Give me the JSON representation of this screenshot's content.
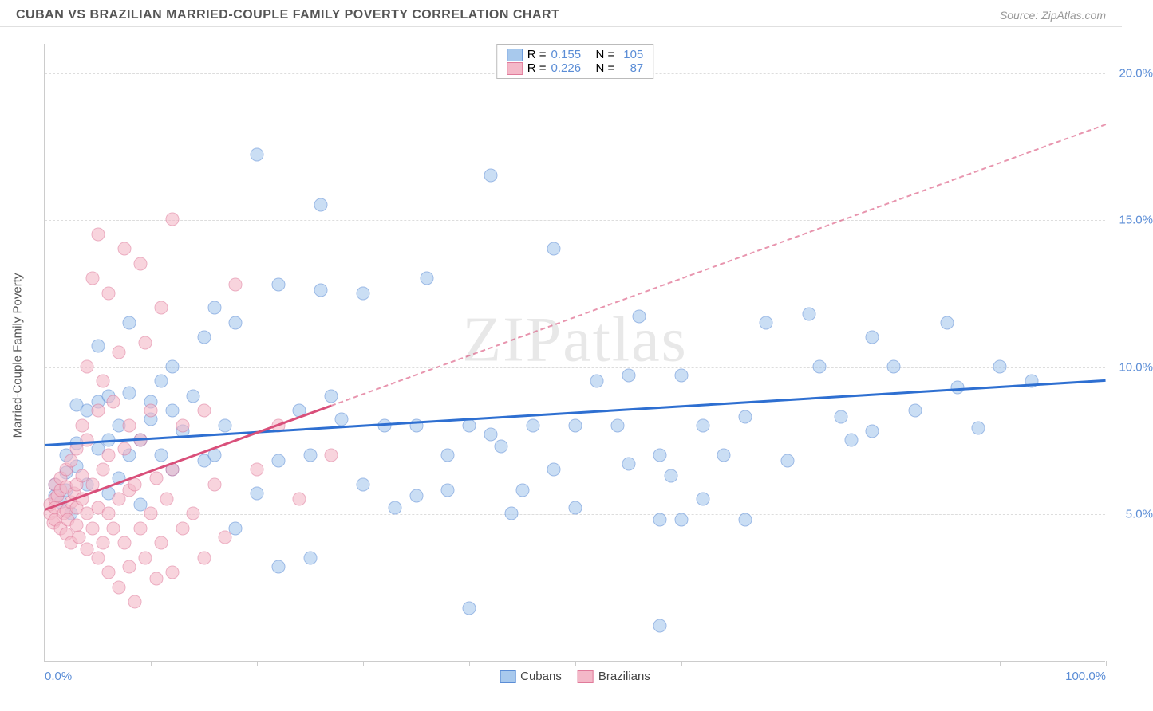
{
  "header": {
    "title": "CUBAN VS BRAZILIAN MARRIED-COUPLE FAMILY POVERTY CORRELATION CHART",
    "source": "Source: ZipAtlas.com"
  },
  "watermark": {
    "part1": "ZIP",
    "part2": "atlas"
  },
  "chart": {
    "type": "scatter",
    "ylabel": "Married-Couple Family Poverty",
    "xlim": [
      0,
      100
    ],
    "ylim": [
      0,
      21
    ],
    "background_color": "#ffffff",
    "grid_color": "#dddddd",
    "axis_color": "#cccccc",
    "tick_label_color": "#5b8dd6",
    "tick_fontsize": 15,
    "ylabel_fontsize": 15,
    "marker_radius": 8.5,
    "y_gridlines": [
      5,
      10,
      15,
      20
    ],
    "y_tick_labels": [
      "5.0%",
      "10.0%",
      "15.0%",
      "20.0%"
    ],
    "x_ticks": [
      0,
      10,
      20,
      30,
      40,
      50,
      60,
      70,
      80,
      90,
      100
    ],
    "x_tick_labels_shown": {
      "0": "0.0%",
      "100": "100.0%"
    },
    "series": [
      {
        "name": "Cubans",
        "fill_color": "#a8c9ed",
        "fill_opacity": 0.6,
        "stroke_color": "#5b8dd6",
        "trend": {
          "y_at_x0": 7.4,
          "y_at_x100": 9.6,
          "color": "#2e6fd1",
          "width": 2.5,
          "solid_until_x": 100,
          "dashed": false
        },
        "stats": {
          "R": "0.155",
          "N": "105"
        },
        "points": [
          [
            1,
            5.6
          ],
          [
            1,
            6.0
          ],
          [
            1.5,
            5.4
          ],
          [
            2,
            5.8
          ],
          [
            2,
            6.4
          ],
          [
            2,
            7.0
          ],
          [
            2.5,
            5.0
          ],
          [
            3,
            6.6
          ],
          [
            3,
            8.7
          ],
          [
            3,
            7.4
          ],
          [
            4,
            6.0
          ],
          [
            4,
            8.5
          ],
          [
            5,
            7.2
          ],
          [
            5,
            8.8
          ],
          [
            5,
            10.7
          ],
          [
            6,
            5.7
          ],
          [
            6,
            7.5
          ],
          [
            6,
            9.0
          ],
          [
            7,
            6.2
          ],
          [
            7,
            8.0
          ],
          [
            8,
            7.0
          ],
          [
            8,
            9.1
          ],
          [
            8,
            11.5
          ],
          [
            9,
            7.5
          ],
          [
            9,
            5.3
          ],
          [
            10,
            8.2
          ],
          [
            10,
            8.8
          ],
          [
            11,
            7.0
          ],
          [
            11,
            9.5
          ],
          [
            12,
            6.5
          ],
          [
            12,
            8.5
          ],
          [
            12,
            10.0
          ],
          [
            13,
            7.8
          ],
          [
            14,
            9.0
          ],
          [
            15,
            6.8
          ],
          [
            15,
            11.0
          ],
          [
            16,
            7.0
          ],
          [
            16,
            12.0
          ],
          [
            17,
            8.0
          ],
          [
            18,
            4.5
          ],
          [
            18,
            11.5
          ],
          [
            20,
            17.2
          ],
          [
            20,
            5.7
          ],
          [
            22,
            3.2
          ],
          [
            22,
            6.8
          ],
          [
            22,
            12.8
          ],
          [
            24,
            8.5
          ],
          [
            25,
            7.0
          ],
          [
            25,
            3.5
          ],
          [
            26,
            15.5
          ],
          [
            26,
            12.6
          ],
          [
            27,
            9.0
          ],
          [
            28,
            8.2
          ],
          [
            30,
            6.0
          ],
          [
            30,
            12.5
          ],
          [
            32,
            8.0
          ],
          [
            33,
            5.2
          ],
          [
            35,
            8.0
          ],
          [
            35,
            5.6
          ],
          [
            36,
            13.0
          ],
          [
            38,
            7.0
          ],
          [
            38,
            5.8
          ],
          [
            40,
            8.0
          ],
          [
            40,
            1.8
          ],
          [
            42,
            16.5
          ],
          [
            42,
            7.7
          ],
          [
            43,
            7.3
          ],
          [
            44,
            5.0
          ],
          [
            45,
            5.8
          ],
          [
            46,
            8.0
          ],
          [
            48,
            6.5
          ],
          [
            48,
            14.0
          ],
          [
            50,
            8.0
          ],
          [
            50,
            5.2
          ],
          [
            52,
            9.5
          ],
          [
            54,
            8.0
          ],
          [
            55,
            6.7
          ],
          [
            55,
            9.7
          ],
          [
            56,
            11.7
          ],
          [
            58,
            7.0
          ],
          [
            58,
            4.8
          ],
          [
            58,
            1.2
          ],
          [
            59,
            6.3
          ],
          [
            60,
            9.7
          ],
          [
            60,
            4.8
          ],
          [
            62,
            8.0
          ],
          [
            62,
            5.5
          ],
          [
            64,
            7.0
          ],
          [
            66,
            8.3
          ],
          [
            66,
            4.8
          ],
          [
            68,
            11.5
          ],
          [
            70,
            6.8
          ],
          [
            72,
            11.8
          ],
          [
            73,
            10.0
          ],
          [
            75,
            8.3
          ],
          [
            76,
            7.5
          ],
          [
            78,
            11.0
          ],
          [
            78,
            7.8
          ],
          [
            80,
            10.0
          ],
          [
            82,
            8.5
          ],
          [
            85,
            11.5
          ],
          [
            86,
            9.3
          ],
          [
            88,
            7.9
          ],
          [
            90,
            10.0
          ],
          [
            93,
            9.5
          ]
        ]
      },
      {
        "name": "Brazilians",
        "fill_color": "#f4b8c8",
        "fill_opacity": 0.6,
        "stroke_color": "#e07a9a",
        "trend": {
          "y_at_x0": 5.2,
          "y_at_x100": 18.3,
          "color": "#d94f7a",
          "width": 2.5,
          "solid_until_x": 27,
          "dashed": true
        },
        "stats": {
          "R": "0.226",
          "N": "87"
        },
        "points": [
          [
            0.5,
            5.0
          ],
          [
            0.5,
            5.3
          ],
          [
            0.8,
            4.7
          ],
          [
            1,
            5.5
          ],
          [
            1,
            5.2
          ],
          [
            1,
            6.0
          ],
          [
            1,
            4.8
          ],
          [
            1.2,
            5.6
          ],
          [
            1.5,
            4.5
          ],
          [
            1.5,
            5.8
          ],
          [
            1.5,
            6.2
          ],
          [
            1.8,
            5.0
          ],
          [
            2,
            4.3
          ],
          [
            2,
            5.1
          ],
          [
            2,
            5.9
          ],
          [
            2,
            6.5
          ],
          [
            2.2,
            4.8
          ],
          [
            2.5,
            5.4
          ],
          [
            2.5,
            6.8
          ],
          [
            2.5,
            4.0
          ],
          [
            2.8,
            5.7
          ],
          [
            3,
            4.6
          ],
          [
            3,
            6.0
          ],
          [
            3,
            7.2
          ],
          [
            3,
            5.2
          ],
          [
            3.2,
            4.2
          ],
          [
            3.5,
            5.5
          ],
          [
            3.5,
            8.0
          ],
          [
            3.5,
            6.3
          ],
          [
            4,
            3.8
          ],
          [
            4,
            5.0
          ],
          [
            4,
            7.5
          ],
          [
            4,
            10.0
          ],
          [
            4.5,
            4.5
          ],
          [
            4.5,
            6.0
          ],
          [
            4.5,
            13.0
          ],
          [
            5,
            3.5
          ],
          [
            5,
            5.2
          ],
          [
            5,
            8.5
          ],
          [
            5,
            14.5
          ],
          [
            5.5,
            4.0
          ],
          [
            5.5,
            6.5
          ],
          [
            5.5,
            9.5
          ],
          [
            6,
            3.0
          ],
          [
            6,
            5.0
          ],
          [
            6,
            7.0
          ],
          [
            6,
            12.5
          ],
          [
            6.5,
            4.5
          ],
          [
            6.5,
            8.8
          ],
          [
            7,
            2.5
          ],
          [
            7,
            5.5
          ],
          [
            7,
            10.5
          ],
          [
            7.5,
            4.0
          ],
          [
            7.5,
            7.2
          ],
          [
            7.5,
            14.0
          ],
          [
            8,
            3.2
          ],
          [
            8,
            5.8
          ],
          [
            8,
            8.0
          ],
          [
            8.5,
            2.0
          ],
          [
            8.5,
            6.0
          ],
          [
            9,
            4.5
          ],
          [
            9,
            7.5
          ],
          [
            9,
            13.5
          ],
          [
            9.5,
            3.5
          ],
          [
            9.5,
            10.8
          ],
          [
            10,
            5.0
          ],
          [
            10,
            8.5
          ],
          [
            10.5,
            2.8
          ],
          [
            10.5,
            6.2
          ],
          [
            11,
            4.0
          ],
          [
            11,
            12.0
          ],
          [
            11.5,
            5.5
          ],
          [
            12,
            3.0
          ],
          [
            12,
            6.5
          ],
          [
            12,
            15.0
          ],
          [
            13,
            4.5
          ],
          [
            13,
            8.0
          ],
          [
            14,
            5.0
          ],
          [
            15,
            3.5
          ],
          [
            15,
            8.5
          ],
          [
            16,
            6.0
          ],
          [
            17,
            4.2
          ],
          [
            18,
            12.8
          ],
          [
            20,
            6.5
          ],
          [
            22,
            8.0
          ],
          [
            24,
            5.5
          ],
          [
            27,
            7.0
          ]
        ]
      }
    ]
  },
  "legend_top": {
    "r_label": "R =",
    "n_label": "N ="
  },
  "legend_bottom": {
    "items": [
      "Cubans",
      "Brazilians"
    ]
  }
}
